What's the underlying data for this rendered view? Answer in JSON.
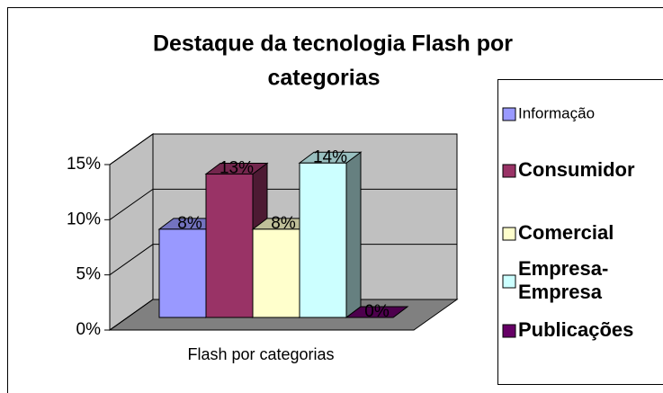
{
  "chart_data": {
    "type": "bar3d",
    "title": [
      "Destaque da tecnologia Flash  por",
      "categorias"
    ],
    "categories": [
      "Flash por categorias"
    ],
    "series": [
      {
        "name": "Informação",
        "color": "#9999ff",
        "values": [
          8
        ],
        "value_labels": [
          "8%"
        ]
      },
      {
        "name": "Consumidor",
        "color": "#993366",
        "values": [
          13
        ],
        "value_labels": [
          "13%"
        ]
      },
      {
        "name": "Comercial",
        "color": "#ffffcc",
        "values": [
          8
        ],
        "value_labels": [
          "8%"
        ]
      },
      {
        "name": "Empresa-Empresa",
        "color": "#ccffff",
        "values": [
          14
        ],
        "value_labels": [
          "14%"
        ]
      },
      {
        "name": "Publicações",
        "color": "#660066",
        "values": [
          0
        ],
        "value_labels": [
          "0%"
        ]
      }
    ],
    "ylim": [
      0,
      15
    ],
    "yticks": [
      {
        "value": 0,
        "label": "0%"
      },
      {
        "value": 5,
        "label": "5%"
      },
      {
        "value": 10,
        "label": "10%"
      },
      {
        "value": 15,
        "label": "15%"
      }
    ],
    "grid": true,
    "legend": "right"
  }
}
